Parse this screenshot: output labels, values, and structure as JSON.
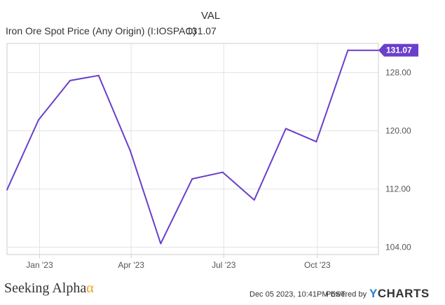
{
  "header": {
    "val_label": "VAL",
    "series_name": "Iron Ore Spot Price (Any Origin) (I:IOSPAO)",
    "series_value": "131.07"
  },
  "footer": {
    "brand": "Seeking Alpha",
    "brand_mark": "α",
    "date": "Dec 05 2023, 10:41PM EST.",
    "powered_by": "Powered by",
    "ycharts_y": "Y",
    "ycharts_rest": "CHARTS"
  },
  "colors": {
    "line": "#6a3fc9",
    "badge": "#6a3fc9",
    "grid": "#e3e3e3",
    "frame": "#cccccc"
  },
  "chart_data": {
    "type": "line",
    "title": "",
    "xlabel": "",
    "ylabel": "",
    "ylim": [
      103,
      132
    ],
    "yticks": [
      104,
      112,
      120,
      128
    ],
    "ytick_labels": [
      "104.00",
      "112.00",
      "120.00",
      "128.00"
    ],
    "xlim": [
      "2022-11-30",
      "2023-11-30"
    ],
    "xticks": [
      "2023-01-01",
      "2023-04-01",
      "2023-07-01",
      "2023-10-01"
    ],
    "xtick_labels": [
      "Jan '23",
      "Apr '23",
      "Jul '23",
      "Oct '23"
    ],
    "grid": true,
    "last_value_label": "131.07",
    "series": [
      {
        "x": [
          "2022-11-30",
          "2022-12-31",
          "2023-01-31",
          "2023-02-28",
          "2023-03-31",
          "2023-04-30",
          "2023-05-31",
          "2023-06-30",
          "2023-07-31",
          "2023-08-31",
          "2023-09-30",
          "2023-10-31",
          "2023-11-30"
        ],
        "values": [
          111.9,
          121.5,
          126.9,
          127.6,
          117.3,
          104.5,
          113.4,
          114.3,
          110.5,
          120.3,
          118.5,
          131.07,
          131.07
        ]
      }
    ]
  }
}
